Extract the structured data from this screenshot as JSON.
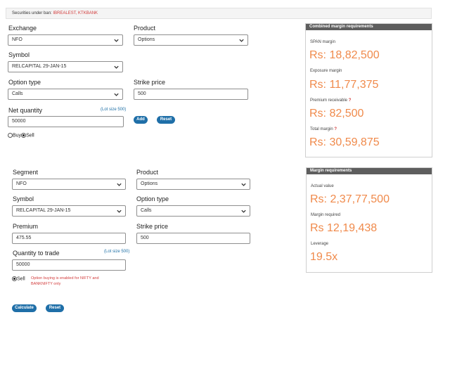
{
  "banner": {
    "label": "Securities under ban: ",
    "value": "IBREALEST, KTKBANK"
  },
  "form1": {
    "exchange_label": "Exchange",
    "exchange_value": "NFO",
    "product_label": "Product",
    "product_value": "Options",
    "symbol_label": "Symbol",
    "symbol_value": "RELCAPITAL 29-JAN-15",
    "option_type_label": "Option type",
    "option_type_value": "Calls",
    "strike_label": "Strike price",
    "strike_value": "500",
    "qty_label": "Net quantity",
    "lot_size": "(Lot size 500)",
    "qty_value": "50000",
    "add_label": "Add",
    "reset_label": "Reset",
    "buy_label": "Buy",
    "sell_label": "Sell",
    "selected_side": "Sell"
  },
  "panel1": {
    "title": "Combined margin requirements",
    "span_label": "SPAN margin",
    "span_value": "Rs: 18,82,500",
    "exposure_label": "Exposure margin",
    "exposure_value": "Rs: 11,77,375",
    "premium_label": "Premium receivable",
    "premium_help": "?",
    "premium_value": "Rs: 82,500",
    "total_label": "Total margin",
    "total_help": "?",
    "total_value": "Rs: 30,59,875"
  },
  "form2": {
    "segment_label": "Segment",
    "segment_value": "NFO",
    "product_label": "Product",
    "product_value": "Options",
    "symbol_label": "Symbol",
    "symbol_value": "RELCAPITAL 29-JAN-15",
    "option_type_label": "Option type",
    "option_type_value": "Calls",
    "premium_label": "Premium",
    "premium_value": "475.55",
    "strike_label": "Strike price",
    "strike_value": "500",
    "qty_label": "Quantity to trade",
    "lot_size": "(Lot size 500)",
    "qty_value": "50000",
    "sell_label": "Sell",
    "warning": "Option buying is enabled for NIFTY and BANKNIFTY only",
    "calculate_label": "Calculate",
    "reset_label": "Reset"
  },
  "panel2": {
    "title": "Margin requirements",
    "actual_label": "Actual value",
    "actual_value": "Rs: 2,37,77,500",
    "required_label": "Margin required",
    "required_value": "Rs 12,19,438",
    "leverage_label": "Leverage",
    "leverage_value": "19.5x"
  },
  "colors": {
    "accent_orange": "#f08a4b",
    "button_blue": "#1f6fa8",
    "panel_header": "#5e5e5e",
    "alert_red": "#d23c3c"
  },
  "icons": {
    "dropdown": "chevron-down-icon"
  }
}
